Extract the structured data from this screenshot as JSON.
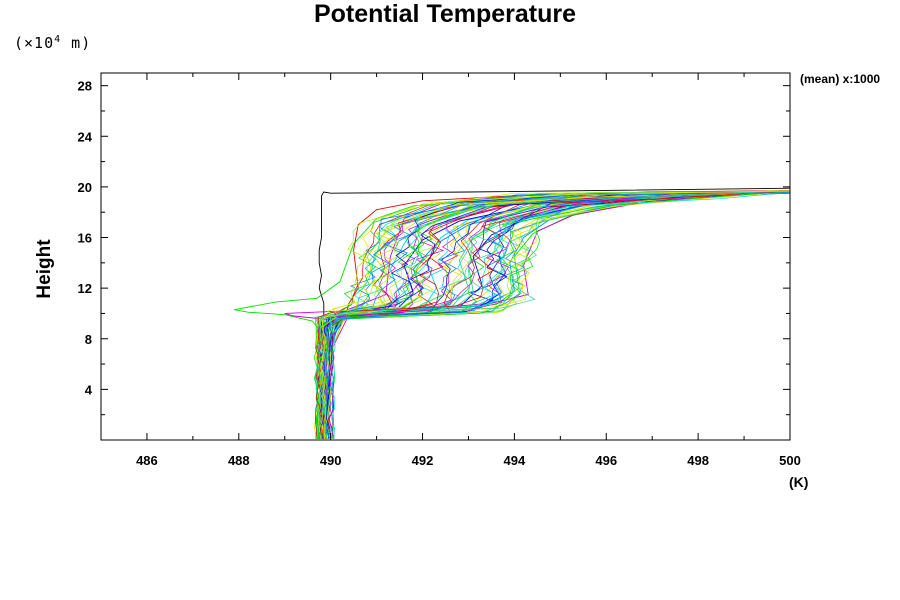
{
  "chart_data": {
    "type": "line",
    "title": "Potential Temperature",
    "ylabel": "Height",
    "y_unit_parts": {
      "prefix": "(×10",
      "exponent": "4",
      "suffix": " m)"
    },
    "xlabel": "(K)",
    "corner_label": "(mean) x:1000",
    "xlim": [
      485,
      500
    ],
    "ylim": [
      0,
      29
    ],
    "x_ticks": [
      486,
      488,
      490,
      492,
      494,
      496,
      498,
      500
    ],
    "y_ticks": [
      4,
      8,
      12,
      16,
      20,
      24,
      28
    ],
    "grid": false,
    "legend": "none",
    "series_colors": [
      "#00e000",
      "#00d8d8",
      "#0080ff",
      "#b0f000",
      "#30d0a0",
      "#e8e000",
      "#0000e0",
      "#d000d0",
      "#e00000"
    ],
    "series": [
      {
        "name": "",
        "color": "#000000",
        "x": [
          489.8,
          489.8,
          489.8,
          489.85,
          489.85,
          489.85,
          489.75,
          489.8,
          489.75,
          489.75,
          489.8,
          489.8,
          489.8,
          489.8,
          489.85,
          490.0,
          493.0,
          500.0
        ],
        "y": [
          0.1,
          3,
          7,
          9.5,
          10.5,
          10.8,
          12,
          13,
          14,
          15,
          16,
          17,
          18,
          19.3,
          19.6,
          19.5,
          19.6,
          19.9
        ]
      },
      {
        "name": "",
        "color": "#00e000",
        "x": [
          489.7,
          489.7,
          489.8,
          489.6,
          489.0,
          488.2,
          487.9,
          488.8,
          489.7,
          490.2,
          490.5,
          491.0,
          491.8,
          493.5,
          497.0,
          500.0
        ],
        "y": [
          0.1,
          5,
          8.5,
          9.4,
          9.9,
          10.1,
          10.3,
          10.9,
          11.2,
          12.5,
          15.5,
          17.5,
          18.5,
          19.1,
          19.6,
          19.7
        ]
      },
      {
        "name": "",
        "color": "#d000d0",
        "x": [
          489.8,
          489.8,
          490.0,
          489.2,
          489.0,
          490.3,
          491.2,
          491.3,
          491.6,
          492.5,
          494.5,
          498.0,
          500.0
        ],
        "y": [
          0.1,
          8,
          9.5,
          9.8,
          10.0,
          10.2,
          11.5,
          14.5,
          17.5,
          18.8,
          19.4,
          19.6,
          19.7
        ]
      },
      {
        "name": "",
        "color": "#e00000",
        "x": [
          489.9,
          490.0,
          490.3,
          490.4,
          490.6,
          490.5,
          490.6,
          491.0,
          492.0,
          494.0,
          497.0,
          500.0
        ],
        "y": [
          0.1,
          8,
          9.5,
          10.8,
          12.0,
          15.0,
          17.0,
          18.2,
          18.9,
          19.3,
          19.6,
          19.7
        ]
      },
      {
        "name": "",
        "color": "#00d8d8",
        "x": [
          489.85,
          489.9,
          490.1,
          491.0,
          491.5,
          491.3,
          491.6,
          491.9,
          493.0,
          495.5,
          500.0
        ],
        "y": [
          0.1,
          7,
          9.5,
          10.0,
          11.5,
          13.5,
          15.5,
          17.0,
          18.3,
          19.2,
          19.6
        ]
      },
      {
        "name": "",
        "color": "#0080ff",
        "x": [
          489.9,
          490.0,
          490.2,
          491.5,
          492.0,
          491.8,
          492.3,
          493.0,
          494.5,
          497.0,
          500.0
        ],
        "y": [
          0.1,
          7,
          9.6,
          10.2,
          11.5,
          13.5,
          15.5,
          17.0,
          18.4,
          19.2,
          19.6
        ]
      },
      {
        "name": "",
        "color": "#b0f000",
        "x": [
          489.8,
          489.9,
          490.2,
          491.8,
          492.6,
          492.5,
          492.9,
          493.5,
          495.0,
          498.0,
          500.0
        ],
        "y": [
          0.1,
          7,
          9.7,
          10.3,
          11.8,
          13.5,
          15.5,
          17.0,
          18.5,
          19.3,
          19.5
        ]
      },
      {
        "name": "",
        "color": "#30d0a0",
        "x": [
          489.95,
          490.0,
          490.3,
          492.3,
          493.1,
          493.0,
          493.4,
          494.1,
          495.5,
          498.0,
          500.0
        ],
        "y": [
          0.1,
          7,
          9.7,
          10.4,
          11.8,
          13.8,
          15.7,
          17.2,
          18.5,
          19.3,
          19.5
        ]
      },
      {
        "name": "",
        "color": "#e8e000",
        "x": [
          489.75,
          489.8,
          490.1,
          493.0,
          493.5,
          493.4,
          493.8,
          494.5,
          496.0,
          498.5,
          500.0
        ],
        "y": [
          0.1,
          7,
          9.8,
          10.5,
          12.0,
          14.0,
          16.0,
          17.5,
          18.8,
          19.4,
          19.5
        ]
      },
      {
        "name": "",
        "color": "#0000e0",
        "x": [
          489.85,
          489.9,
          490.2,
          492.8,
          493.3,
          493.1,
          493.5,
          494.3,
          495.8,
          498.5,
          500.0
        ],
        "y": [
          0.1,
          7,
          9.8,
          10.5,
          12.2,
          14.5,
          16.2,
          17.6,
          18.8,
          19.4,
          19.6
        ]
      },
      {
        "name": "",
        "color": "#00e000",
        "x": [
          489.7,
          489.8,
          490.3,
          493.6,
          494.1,
          494.0,
          494.4,
          495.2,
          496.8,
          499.0,
          500.0
        ],
        "y": [
          0.1,
          7,
          9.9,
          10.7,
          12.0,
          14.5,
          16.3,
          17.7,
          18.9,
          19.4,
          19.5
        ]
      },
      {
        "name": "",
        "color": "#d000d0",
        "x": [
          489.9,
          490.0,
          490.4,
          493.5,
          494.3,
          494.2,
          494.5,
          495.3,
          497.0,
          499.0,
          500.0
        ],
        "y": [
          0.1,
          7,
          9.9,
          10.8,
          11.5,
          13.8,
          16.5,
          17.8,
          18.9,
          19.4,
          19.5
        ]
      },
      {
        "name": "",
        "color": "#0080ff",
        "x": [
          489.8,
          489.9,
          490.3,
          493.3,
          494.0,
          493.9,
          494.2,
          494.8,
          496.5,
          499.0,
          500.0
        ],
        "y": [
          0.1,
          7,
          9.8,
          10.6,
          11.8,
          14.0,
          16.0,
          17.5,
          18.8,
          19.4,
          19.6
        ]
      },
      {
        "name": "",
        "color": "#00d8d8",
        "x": [
          489.75,
          489.8,
          490.2,
          492.0,
          492.3,
          492.1,
          492.4,
          493.0,
          494.8,
          497.5,
          500.0
        ],
        "y": [
          0.1,
          7,
          9.8,
          10.3,
          12.0,
          14.0,
          16.0,
          17.4,
          18.6,
          19.3,
          19.6
        ]
      },
      {
        "name": "",
        "color": "#b0f000",
        "x": [
          489.9,
          490.0,
          490.3,
          491.2,
          491.0,
          490.8,
          491.2,
          492.2,
          494.0,
          497.0,
          500.0
        ],
        "y": [
          0.1,
          7,
          9.6,
          10.1,
          12.0,
          14.5,
          16.5,
          17.8,
          18.8,
          19.4,
          19.6
        ]
      },
      {
        "name": "",
        "color": "#e8e000",
        "x": [
          489.8,
          489.9,
          490.1,
          490.5,
          490.7,
          491.1,
          492.0,
          494.0,
          497.0,
          500.0
        ],
        "y": [
          0.1,
          7,
          9.5,
          10.0,
          12.0,
          15.5,
          17.5,
          18.7,
          19.4,
          19.7
        ]
      },
      {
        "name": "",
        "color": "#0000e0",
        "x": [
          489.85,
          489.9,
          490.2,
          491.4,
          491.8,
          491.6,
          492.0,
          492.8,
          494.5,
          497.5,
          500.0
        ],
        "y": [
          0.1,
          7,
          9.6,
          10.2,
          11.6,
          13.8,
          15.8,
          17.3,
          18.6,
          19.3,
          19.6
        ]
      },
      {
        "name": "",
        "color": "#30d0a0",
        "x": [
          489.7,
          489.8,
          490.3,
          492.6,
          493.0,
          492.8,
          493.1,
          493.8,
          495.3,
          498.0,
          500.0
        ],
        "y": [
          0.1,
          7,
          9.8,
          10.4,
          12.0,
          14.2,
          16.0,
          17.5,
          18.7,
          19.4,
          19.6
        ]
      }
    ]
  }
}
